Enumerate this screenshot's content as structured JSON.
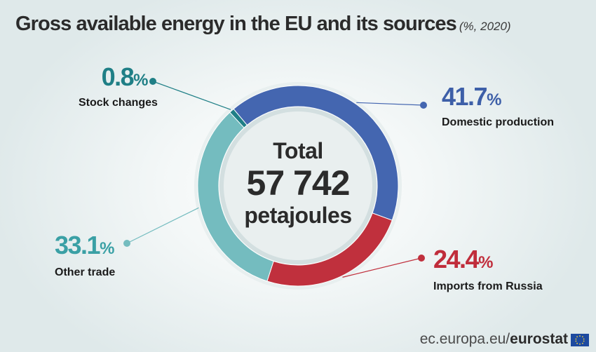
{
  "header": {
    "title": "Gross available energy in the EU and its sources",
    "subtitle": "(%, 2020)"
  },
  "center": {
    "line1": "Total",
    "line2": "57 742",
    "line3": "petajoules"
  },
  "chart_data": {
    "type": "pie",
    "donut": true,
    "title": "Gross available energy in the EU and its sources",
    "subtitle": "(%, 2020)",
    "total_label": "Total 57 742 petajoules",
    "series": [
      {
        "name": "Domestic production",
        "value": 41.7,
        "value_label": "41.7",
        "color": "#4466b0"
      },
      {
        "name": "Imports from Russia",
        "value": 24.4,
        "value_label": "24.4",
        "color": "#c0303d"
      },
      {
        "name": "Other trade",
        "value": 33.1,
        "value_label": "33.1",
        "color": "#74bcbf"
      },
      {
        "name": "Stock changes",
        "value": 0.8,
        "value_label": "0.8",
        "color": "#1f7f86"
      }
    ],
    "percent_symbol": "%"
  },
  "footer": {
    "site": "ec.europa.eu/",
    "brand": "eurostat"
  },
  "colors": {
    "label_domestic": "#3d5fa8",
    "label_russia": "#c02d3b",
    "label_other": "#3aa0a5",
    "label_stock": "#1f7f86"
  }
}
